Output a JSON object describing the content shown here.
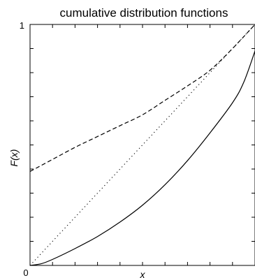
{
  "chart_data": {
    "type": "line",
    "title": "cumulative distribution functions",
    "xlabel": "x",
    "ylabel": "F(x)",
    "xlim": [
      0,
      1
    ],
    "ylim": [
      0,
      1
    ],
    "grid": false,
    "x_tick_labels": [
      "0"
    ],
    "y_tick_labels": [
      "1"
    ],
    "series": [
      {
        "style": "solid",
        "x": [
          0.0,
          0.05,
          0.1,
          0.2,
          0.3,
          0.4,
          0.5,
          0.6,
          0.7,
          0.8,
          0.9,
          0.95,
          1.0
        ],
        "y": [
          0.0,
          0.007,
          0.025,
          0.07,
          0.12,
          0.18,
          0.25,
          0.335,
          0.435,
          0.55,
          0.675,
          0.76,
          0.89
        ]
      },
      {
        "style": "dotted",
        "x": [
          0.0,
          1.0
        ],
        "y": [
          0.0,
          1.0
        ]
      },
      {
        "style": "dashed",
        "x": [
          0.0,
          0.02,
          0.1,
          0.2,
          0.3,
          0.4,
          0.5,
          0.6,
          0.7,
          0.8,
          0.9,
          1.0
        ],
        "y": [
          0.39,
          0.4,
          0.44,
          0.49,
          0.535,
          0.58,
          0.625,
          0.685,
          0.745,
          0.81,
          0.9,
          1.0
        ]
      }
    ]
  }
}
